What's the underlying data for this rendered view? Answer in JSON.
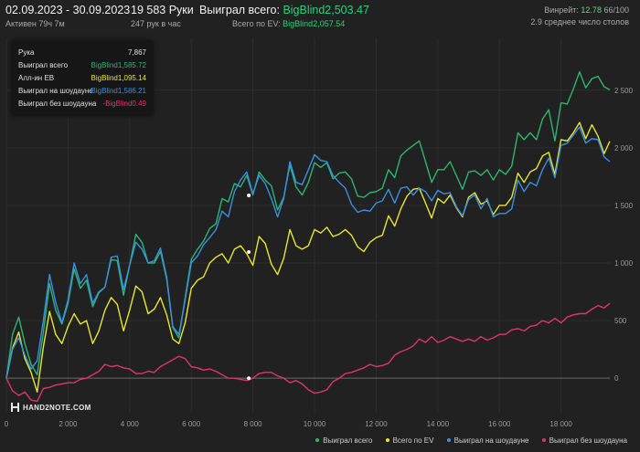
{
  "header": {
    "date_range": "02.09.2023 - 30.09.2023",
    "active": "Активен 79ч 7м",
    "hands": "19 583 Руки",
    "hands_per_hour": "247 рук в час",
    "won_total_label": "Выиграл всего:",
    "won_total_value": "BigBlind2,503.47",
    "ev_total_label": "Всего по EV:",
    "ev_total_value": "BigBlind2,057.54",
    "winrate_label": "Винрейт:",
    "winrate_value": "12.78",
    "winrate_suffix": "66/100",
    "avg_tables": "2.9 среднее число столов"
  },
  "tooltip": {
    "rows": [
      {
        "label": "Рука",
        "value": "7,867",
        "color": "#d0d0d0"
      },
      {
        "label": "Выиграл всего",
        "value": "BigBlind1,585.72",
        "color": "#2bb673"
      },
      {
        "label": "Алл-ин ЕВ",
        "value": "BigBlind1,095.14",
        "color": "#e6e62e"
      },
      {
        "label": "Выиграл на шоудауне",
        "value": "BigBlind1,586.21",
        "color": "#3a8fe0"
      },
      {
        "label": "Выиграл без шоудауна",
        "value": "-BigBlind0.49",
        "color": "#e0336e"
      }
    ]
  },
  "logo": "HAND2NOTE.COM",
  "chart_data": {
    "type": "line",
    "xlabel": "",
    "ylabel": "",
    "xlim": [
      0,
      19583
    ],
    "ylim": [
      -300,
      2950
    ],
    "x_ticks": [
      0,
      2000,
      4000,
      6000,
      8000,
      10000,
      12000,
      14000,
      16000,
      18000
    ],
    "x_tick_labels": [
      "0",
      "2 000",
      "4 000",
      "6 000",
      "8 000",
      "10 000",
      "12 000",
      "14 000",
      "16 000",
      "18 000"
    ],
    "y_ticks": [
      0,
      500,
      1000,
      1500,
      2000,
      2500
    ],
    "y_tick_labels": [
      "0",
      "500",
      "1 000",
      "1 500",
      "2 000",
      "2 500"
    ],
    "grid": true,
    "legend_position": "bottom-right",
    "x": [
      0,
      200,
      400,
      600,
      800,
      1000,
      1200,
      1400,
      1600,
      1800,
      2000,
      2200,
      2400,
      2600,
      2800,
      3000,
      3200,
      3400,
      3600,
      3800,
      4000,
      4200,
      4400,
      4600,
      4800,
      5000,
      5200,
      5400,
      5600,
      5800,
      6000,
      6200,
      6400,
      6600,
      6800,
      7000,
      7200,
      7400,
      7600,
      7800,
      8000,
      8200,
      8400,
      8600,
      8800,
      9000,
      9200,
      9400,
      9600,
      9800,
      10000,
      10200,
      10400,
      10600,
      10800,
      11000,
      11200,
      11400,
      11600,
      11800,
      12000,
      12200,
      12400,
      12600,
      12800,
      13000,
      13200,
      13400,
      13600,
      13800,
      14000,
      14200,
      14400,
      14600,
      14800,
      15000,
      15200,
      15400,
      15600,
      15800,
      16000,
      16200,
      16400,
      16600,
      16800,
      17000,
      17200,
      17400,
      17600,
      17800,
      18000,
      18200,
      18400,
      18600,
      18800,
      19000,
      19200,
      19400,
      19583
    ],
    "series": [
      {
        "name": "Выиграл всего",
        "color": "#2bb673",
        "values": [
          0,
          380,
          530,
          300,
          120,
          30,
          400,
          820,
          590,
          470,
          650,
          950,
          780,
          850,
          620,
          740,
          790,
          1030,
          1020,
          720,
          980,
          1250,
          1180,
          1000,
          1000,
          1100,
          860,
          440,
          350,
          700,
          1030,
          1120,
          1190,
          1300,
          1340,
          1560,
          1530,
          1690,
          1660,
          1760,
          1590,
          1790,
          1720,
          1670,
          1460,
          1570,
          1850,
          1660,
          1590,
          1700,
          1870,
          1830,
          1870,
          1730,
          1780,
          1790,
          1730,
          1580,
          1570,
          1610,
          1620,
          1650,
          1810,
          1740,
          1930,
          1980,
          2020,
          2060,
          1880,
          1700,
          1810,
          1810,
          1880,
          1760,
          1640,
          1790,
          1800,
          1760,
          1810,
          1720,
          1810,
          1770,
          1840,
          2130,
          2070,
          2130,
          2070,
          2250,
          2330,
          2060,
          2390,
          2380,
          2510,
          2660,
          2520,
          2600,
          2620,
          2530,
          2503
        ]
      },
      {
        "name": "Всего по EV",
        "color": "#e6e62e",
        "values": [
          0,
          260,
          400,
          170,
          50,
          -120,
          270,
          580,
          380,
          300,
          450,
          560,
          470,
          500,
          300,
          410,
          590,
          700,
          640,
          410,
          590,
          800,
          750,
          560,
          600,
          700,
          550,
          340,
          300,
          480,
          780,
          850,
          880,
          1000,
          1050,
          1080,
          1000,
          1120,
          1150,
          1080,
          980,
          1230,
          1170,
          990,
          900,
          1040,
          1290,
          1150,
          1120,
          1150,
          1290,
          1260,
          1310,
          1230,
          1250,
          1290,
          1240,
          1140,
          1100,
          1180,
          1220,
          1240,
          1410,
          1320,
          1470,
          1580,
          1640,
          1650,
          1520,
          1390,
          1560,
          1520,
          1590,
          1480,
          1400,
          1570,
          1610,
          1510,
          1540,
          1420,
          1500,
          1500,
          1570,
          1780,
          1700,
          1790,
          1820,
          1930,
          1960,
          1770,
          2070,
          2060,
          2130,
          2220,
          2080,
          2200,
          2100,
          1950,
          2057
        ]
      },
      {
        "name": "Выиграл на шоудауне",
        "color": "#3a8fe0",
        "values": [
          0,
          250,
          350,
          200,
          80,
          150,
          500,
          900,
          660,
          480,
          680,
          1000,
          820,
          900,
          650,
          750,
          790,
          1050,
          1060,
          770,
          980,
          1180,
          1120,
          1000,
          1020,
          1130,
          880,
          450,
          380,
          680,
          1000,
          1060,
          1160,
          1220,
          1290,
          1450,
          1400,
          1620,
          1720,
          1790,
          1600,
          1760,
          1690,
          1560,
          1400,
          1560,
          1880,
          1700,
          1680,
          1810,
          1940,
          1890,
          1880,
          1760,
          1700,
          1650,
          1510,
          1440,
          1460,
          1450,
          1520,
          1540,
          1640,
          1520,
          1650,
          1660,
          1590,
          1650,
          1620,
          1540,
          1630,
          1600,
          1610,
          1490,
          1410,
          1550,
          1590,
          1470,
          1560,
          1400,
          1430,
          1430,
          1470,
          1720,
          1620,
          1700,
          1670,
          1810,
          1910,
          1740,
          2020,
          2040,
          2110,
          2180,
          2040,
          2080,
          2070,
          1920,
          1880
        ]
      },
      {
        "name": "Выиграл без шоудауна",
        "color": "#e0336e",
        "values": [
          0,
          -110,
          -150,
          -120,
          -190,
          -200,
          -90,
          -80,
          -60,
          -50,
          -40,
          -40,
          -10,
          0,
          30,
          60,
          120,
          100,
          110,
          90,
          80,
          40,
          40,
          60,
          50,
          100,
          130,
          160,
          190,
          170,
          100,
          90,
          70,
          80,
          60,
          30,
          0,
          0,
          -10,
          -20,
          0,
          40,
          50,
          50,
          20,
          0,
          -40,
          -20,
          -50,
          -100,
          -130,
          -120,
          -100,
          -30,
          0,
          40,
          50,
          70,
          90,
          120,
          100,
          110,
          130,
          200,
          230,
          250,
          280,
          340,
          310,
          360,
          310,
          330,
          360,
          340,
          320,
          340,
          320,
          360,
          330,
          350,
          380,
          380,
          420,
          430,
          410,
          450,
          460,
          500,
          480,
          520,
          480,
          530,
          550,
          560,
          560,
          600,
          630,
          610,
          650
        ]
      }
    ]
  }
}
